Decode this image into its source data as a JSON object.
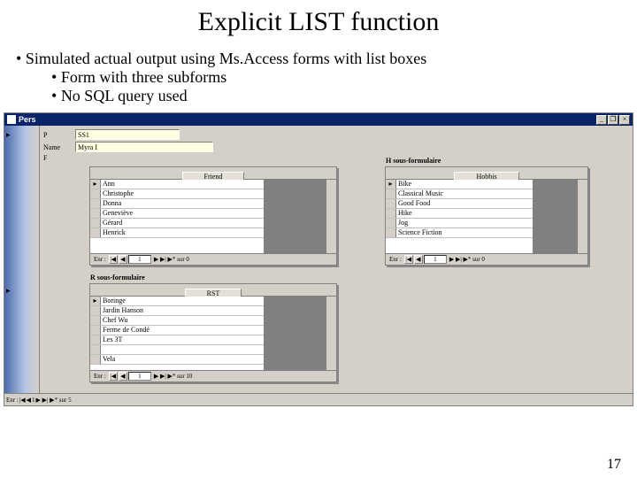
{
  "slide": {
    "title": "Explicit LIST function",
    "b1": "Simulated actual output using Ms.Access forms with list boxes",
    "b2": "Form with three subforms",
    "b3": "No SQL query used",
    "page_number": "17"
  },
  "form": {
    "window_title": "Pers",
    "fields": {
      "f1_label": "P",
      "f1_value": "SS1",
      "f2_label": "Name",
      "f2_value": "Myra I",
      "f3_label": "F",
      "f3_value": ""
    },
    "nav": {
      "label": "Enr :",
      "rec": "1",
      "tail": "▶ ▶| ▶* sur 5"
    }
  },
  "subforms": {
    "friend": {
      "title": "",
      "header": "Friend",
      "rows": [
        "Ann",
        "Christophe",
        "Donna",
        "Geneviève",
        "Gérard",
        "Henrick"
      ],
      "nav": {
        "label": "Enr :",
        "rec": "1",
        "tail": "▶ ▶| ▶* sur 0"
      }
    },
    "hobby": {
      "title": "H sous-formulaire",
      "header": "Hobbis",
      "rows": [
        "Bike",
        "Classical Music",
        "Good Food",
        "Hike",
        "Jog",
        "Science Fiction"
      ],
      "nav": {
        "label": "Enr :",
        "rec": "1",
        "tail": "▶ ▶| ▶* sur 0"
      }
    },
    "resto": {
      "title": "R sous-formulaire",
      "header": "RST",
      "rows": [
        "Boringe",
        "Jardin Hanson",
        "Chef Wu",
        "Ferme de Condé",
        "Les 3T",
        "",
        "Vela"
      ],
      "nav": {
        "label": "Enr :",
        "rec": "1",
        "tail": "▶ ▶| ▶* sur 10"
      }
    }
  }
}
